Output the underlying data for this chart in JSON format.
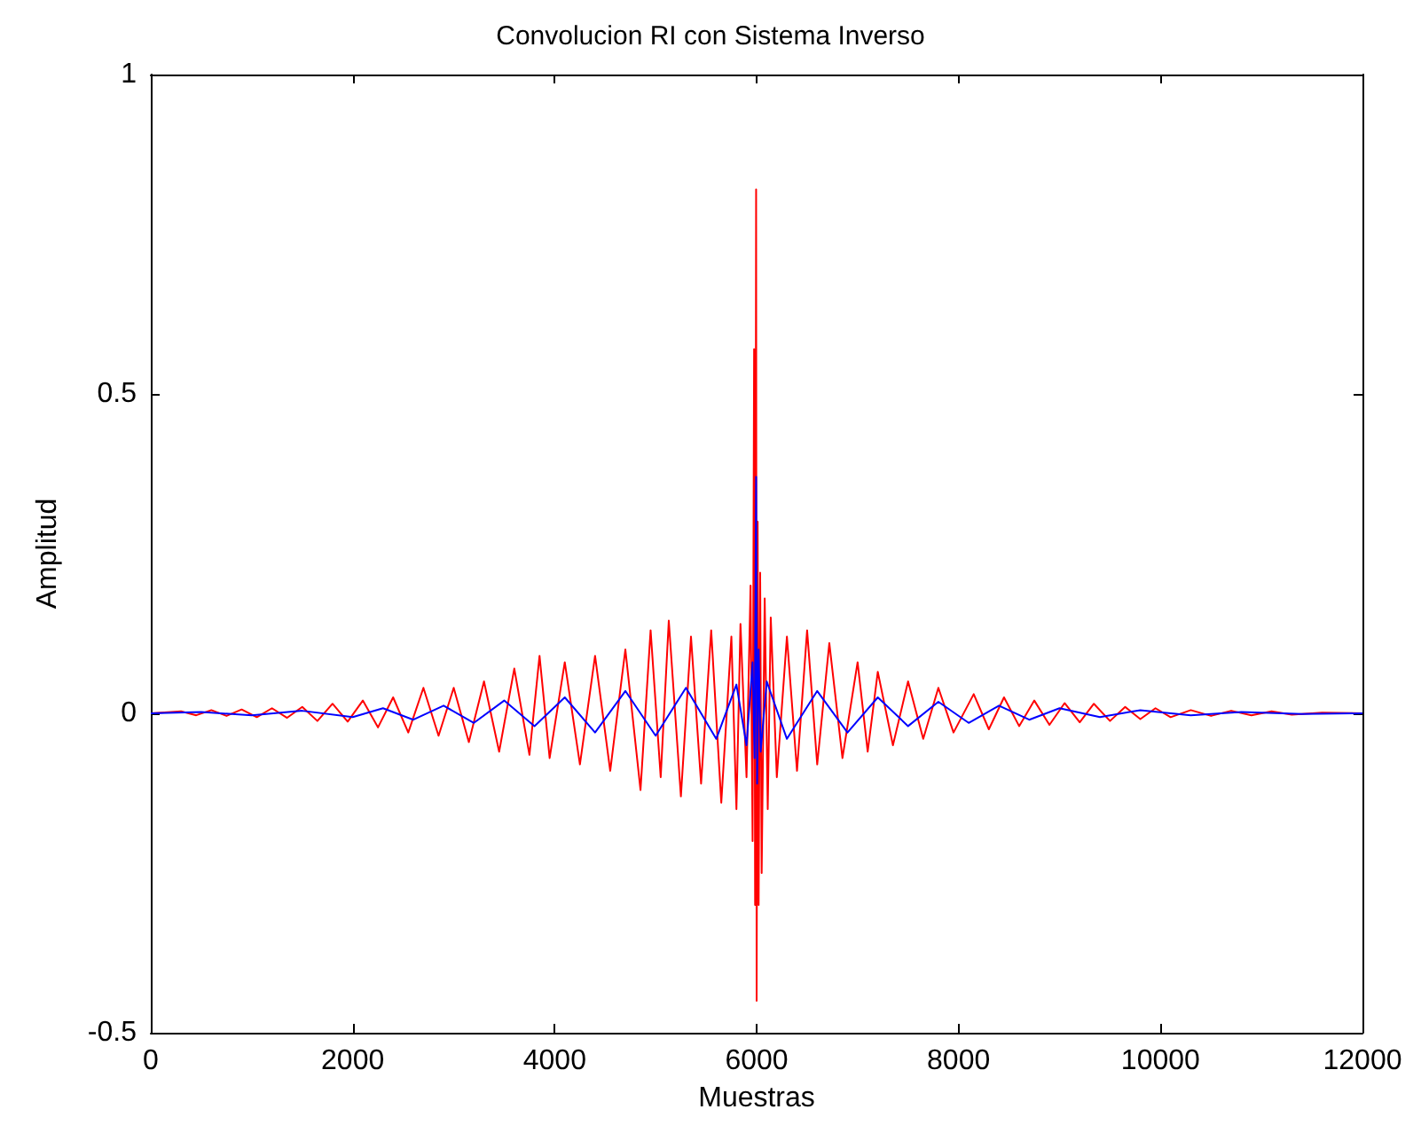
{
  "chart_data": {
    "type": "line",
    "title": "Convolucion RI con Sistema Inverso",
    "xlabel": "Muestras",
    "ylabel": "Amplitud",
    "xlim": [
      0,
      12000
    ],
    "xticks": [
      0,
      2000,
      4000,
      6000,
      8000,
      10000,
      12000
    ],
    "ylim": [
      -0.5,
      1
    ],
    "yticks": [
      -0.5,
      0,
      0.5,
      1
    ],
    "grid": false,
    "marker": "none",
    "line_style": "solid",
    "series": [
      {
        "color": "#ff0000",
        "x": [
          0,
          300,
          450,
          600,
          750,
          900,
          1050,
          1200,
          1350,
          1500,
          1650,
          1800,
          1950,
          2100,
          2250,
          2400,
          2550,
          2700,
          2850,
          3000,
          3150,
          3300,
          3450,
          3600,
          3750,
          3850,
          3950,
          4100,
          4250,
          4400,
          4550,
          4700,
          4850,
          4950,
          5050,
          5130,
          5250,
          5350,
          5450,
          5550,
          5650,
          5750,
          5800,
          5840,
          5900,
          5940,
          5960,
          5975,
          5985,
          5995,
          6000,
          6010,
          6020,
          6035,
          6050,
          6080,
          6110,
          6140,
          6200,
          6300,
          6400,
          6500,
          6600,
          6720,
          6850,
          7000,
          7100,
          7200,
          7350,
          7500,
          7650,
          7800,
          7950,
          8150,
          8300,
          8450,
          8600,
          8750,
          8900,
          9050,
          9200,
          9340,
          9500,
          9650,
          9800,
          9950,
          10100,
          10300,
          10500,
          10700,
          10900,
          11100,
          11300,
          11600,
          12000
        ],
        "values": [
          0,
          0.003,
          -0.003,
          0.005,
          -0.004,
          0.006,
          -0.006,
          0.008,
          -0.007,
          0.01,
          -0.012,
          0.015,
          -0.013,
          0.02,
          -0.022,
          0.025,
          -0.03,
          0.04,
          -0.035,
          0.04,
          -0.045,
          0.05,
          -0.06,
          0.07,
          -0.065,
          0.09,
          -0.07,
          0.08,
          -0.08,
          0.09,
          -0.09,
          0.1,
          -0.12,
          0.13,
          -0.1,
          0.145,
          -0.13,
          0.12,
          -0.11,
          0.13,
          -0.14,
          0.12,
          -0.15,
          0.14,
          -0.1,
          0.2,
          -0.2,
          0.57,
          -0.3,
          0.82,
          -0.45,
          0.3,
          -0.3,
          0.22,
          -0.25,
          0.18,
          -0.15,
          0.15,
          -0.1,
          0.12,
          -0.09,
          0.13,
          -0.08,
          0.11,
          -0.07,
          0.08,
          -0.06,
          0.065,
          -0.05,
          0.05,
          -0.04,
          0.04,
          -0.03,
          0.03,
          -0.025,
          0.025,
          -0.02,
          0.02,
          -0.018,
          0.016,
          -0.014,
          0.015,
          -0.012,
          0.01,
          -0.009,
          0.008,
          -0.006,
          0.005,
          -0.004,
          0.004,
          -0.003,
          0.003,
          -0.002,
          0.001,
          0
        ]
      },
      {
        "color": "#0000ff",
        "x": [
          0,
          500,
          1000,
          1500,
          2000,
          2300,
          2600,
          2900,
          3200,
          3500,
          3800,
          4100,
          4400,
          4700,
          5000,
          5300,
          5600,
          5800,
          5900,
          5960,
          5980,
          5995,
          6005,
          6020,
          6040,
          6100,
          6300,
          6600,
          6900,
          7200,
          7500,
          7800,
          8100,
          8400,
          8700,
          9000,
          9400,
          9800,
          10300,
          10800,
          11400,
          12000
        ],
        "values": [
          0,
          0.002,
          -0.003,
          0.004,
          -0.006,
          0.008,
          -0.01,
          0.012,
          -0.015,
          0.02,
          -0.02,
          0.025,
          -0.03,
          0.035,
          -0.035,
          0.04,
          -0.04,
          0.045,
          -0.05,
          0.08,
          -0.07,
          0.37,
          -0.11,
          0.1,
          -0.06,
          0.05,
          -0.04,
          0.035,
          -0.03,
          0.025,
          -0.02,
          0.018,
          -0.015,
          0.012,
          -0.01,
          0.008,
          -0.006,
          0.005,
          -0.003,
          0.002,
          -0.001,
          0
        ]
      }
    ]
  }
}
